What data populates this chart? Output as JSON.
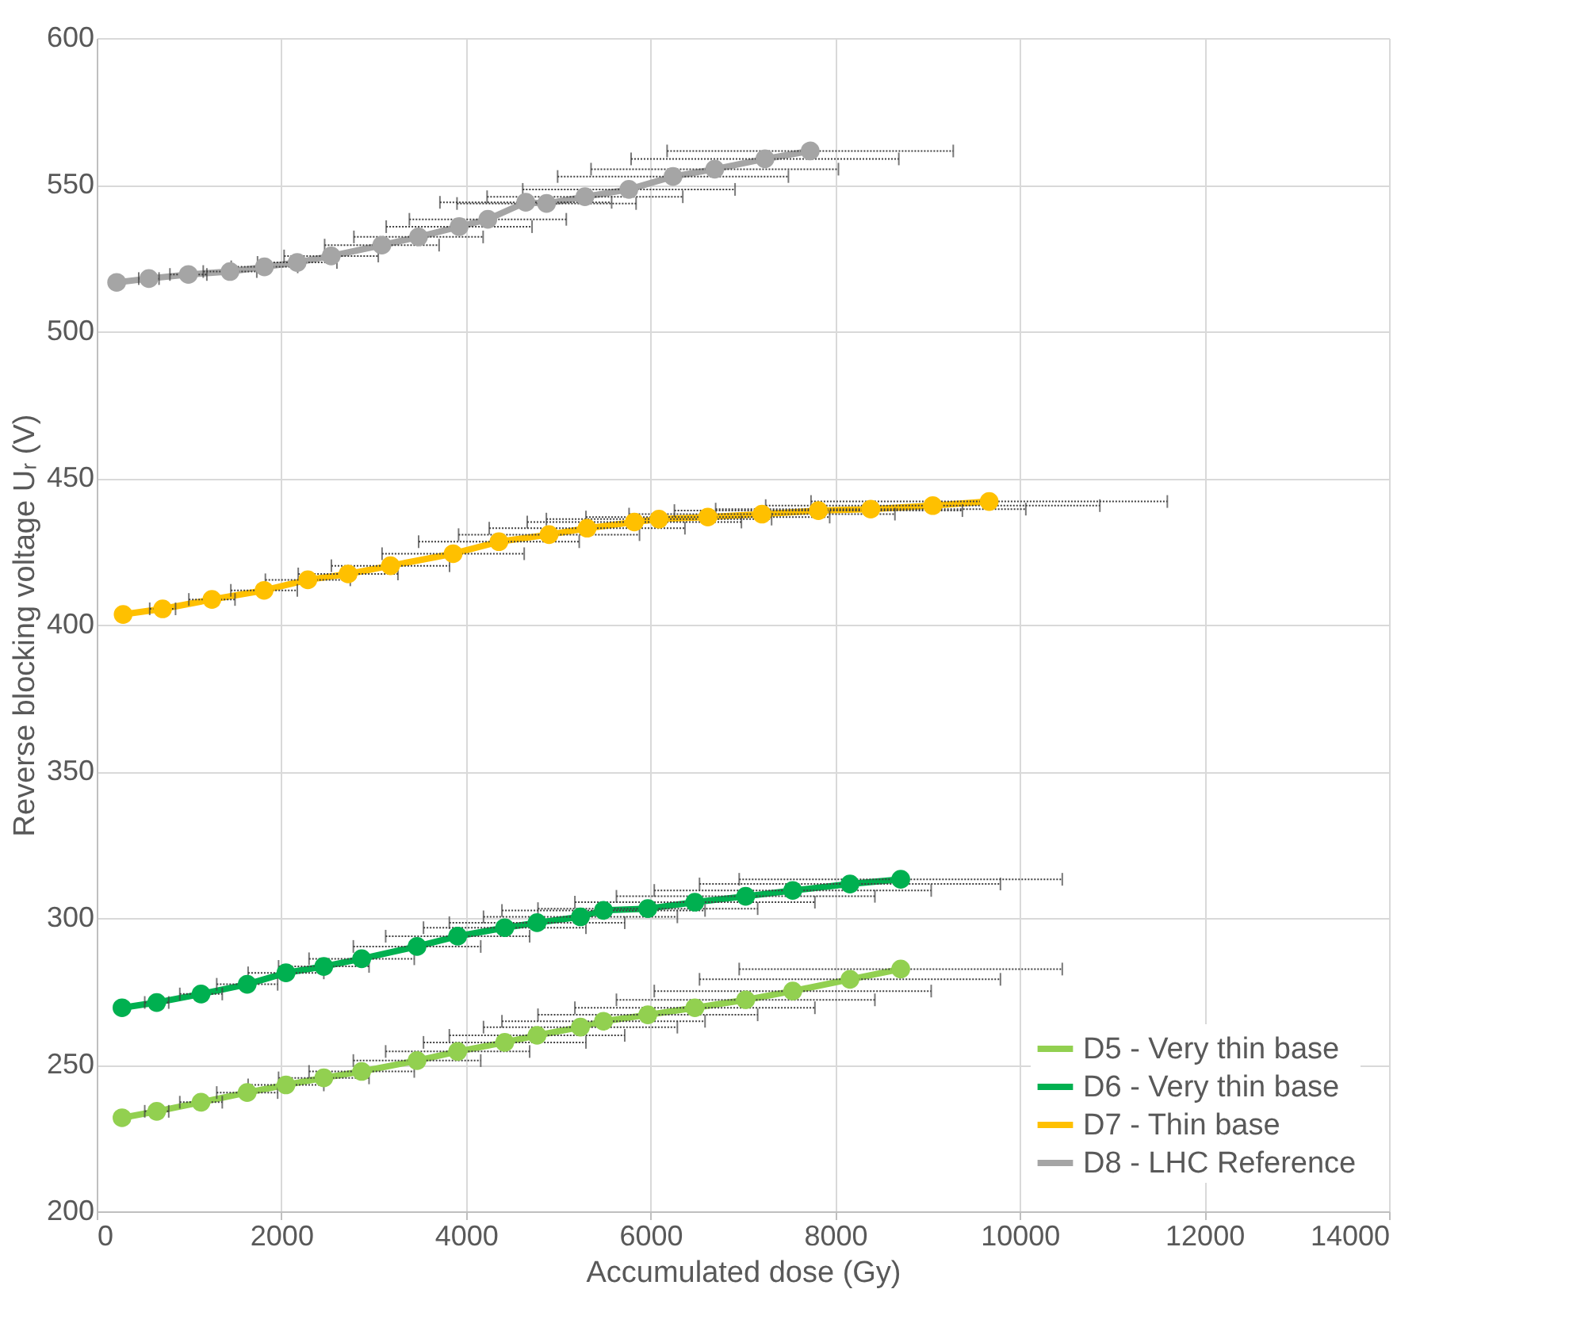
{
  "chart_data": {
    "type": "line",
    "xlabel": "Accumulated dose (Gy)",
    "ylabel": "Reverse blocking voltage Uᵣ (V)",
    "xlim": [
      0,
      14000
    ],
    "xticks": [
      0,
      2000,
      4000,
      6000,
      8000,
      10000,
      12000,
      14000
    ],
    "ylim": [
      200,
      600
    ],
    "yticks": [
      200,
      250,
      300,
      350,
      400,
      450,
      500,
      550,
      600
    ],
    "grid": true,
    "legend": "bottom right",
    "marker": "circle",
    "line_style": "solid",
    "series": [
      {
        "name": "D5 - Very thin base",
        "color": "#92d050",
        "x": [
          274,
          650,
          1130,
          1630,
          2050,
          2460,
          2870,
          3470,
          3910,
          4420,
          4770,
          5240,
          5490,
          5970,
          6480,
          7030,
          7540,
          8160,
          8710
        ],
        "values": [
          231.9,
          234.1,
          237.2,
          240.5,
          243.1,
          245.5,
          247.7,
          251.4,
          254.5,
          257.6,
          260,
          262.8,
          264.8,
          267,
          269.4,
          272.1,
          275.1,
          279.1,
          282.6
        ],
        "xerrors": [
          55,
          130,
          230,
          330,
          410,
          490,
          570,
          690,
          780,
          880,
          950,
          1050,
          1100,
          1190,
          1300,
          1400,
          1500,
          1630,
          1750
        ]
      },
      {
        "name": "D6 - Very thin base",
        "color": "#00b050",
        "x": [
          274,
          650,
          1130,
          1630,
          2050,
          2460,
          2870,
          3470,
          3910,
          4420,
          4770,
          5240,
          5490,
          5970,
          6480,
          7030,
          7540,
          8160,
          8710
        ],
        "values": [
          269.4,
          271.2,
          274.1,
          277.4,
          281.3,
          283.5,
          286.1,
          290.3,
          293.8,
          296.7,
          298.4,
          300.4,
          302.6,
          303.2,
          305.4,
          307.4,
          309.4,
          311.6,
          313.2
        ],
        "xerrors": [
          55,
          130,
          230,
          330,
          410,
          490,
          570,
          690,
          780,
          880,
          950,
          1050,
          1100,
          1190,
          1300,
          1400,
          1500,
          1630,
          1750
        ]
      },
      {
        "name": "D7 - Thin base",
        "color": "#ffc000",
        "x": [
          286,
          714,
          1248,
          1813,
          2287,
          2723,
          3182,
          3861,
          4357,
          4900,
          5312,
          5824,
          6091,
          6620,
          7207,
          7818,
          8385,
          9057,
          9668
        ],
        "values": [
          403.5,
          405.4,
          408.6,
          411.7,
          415.3,
          417.3,
          420.1,
          424.2,
          428.3,
          430.7,
          432.9,
          435,
          436,
          436.7,
          437.7,
          438.9,
          439.4,
          440.6,
          442
        ],
        "xerrors": [
          null,
          140,
          250,
          360,
          460,
          540,
          640,
          770,
          870,
          980,
          1060,
          1160,
          1220,
          1320,
          1440,
          1560,
          1680,
          1810,
          1930
        ]
      },
      {
        "name": "D8 - LHC Reference",
        "color": "#a5a5a5",
        "x": [
          216,
          565,
          993,
          1444,
          1817,
          2172,
          2540,
          3089,
          3486,
          3926,
          4237,
          4648,
          4873,
          5289,
          5765,
          6243,
          6695,
          7239,
          7729
        ],
        "values": [
          516.7,
          518,
          519.4,
          520.4,
          522,
          523.5,
          525.7,
          529.4,
          532.2,
          535.7,
          538.2,
          544,
          543.6,
          545.9,
          548.4,
          552.8,
          555.3,
          558.8,
          561.5
        ],
        "xerrors": [
          45,
          110,
          200,
          290,
          360,
          430,
          510,
          620,
          700,
          790,
          850,
          930,
          970,
          1060,
          1150,
          1250,
          1340,
          1450,
          1550
        ]
      }
    ]
  }
}
